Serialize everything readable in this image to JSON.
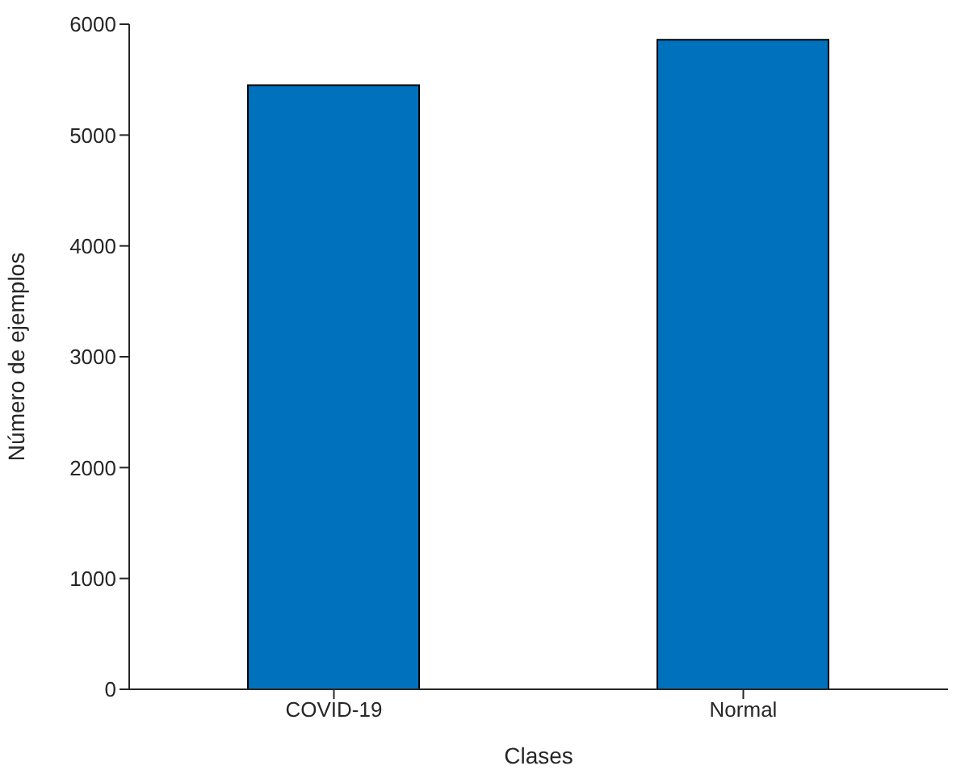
{
  "chart_data": {
    "type": "bar",
    "xlabel": "Clases",
    "ylabel": "Número de ejemplos",
    "categories": [
      "COVID-19",
      "Normal"
    ],
    "values": [
      5450,
      5860
    ],
    "color": "#0072bd",
    "ylim": [
      0,
      6000
    ],
    "yticks": [
      0,
      1000,
      2000,
      3000,
      4000,
      5000,
      6000
    ],
    "grid": false,
    "legend": false
  }
}
